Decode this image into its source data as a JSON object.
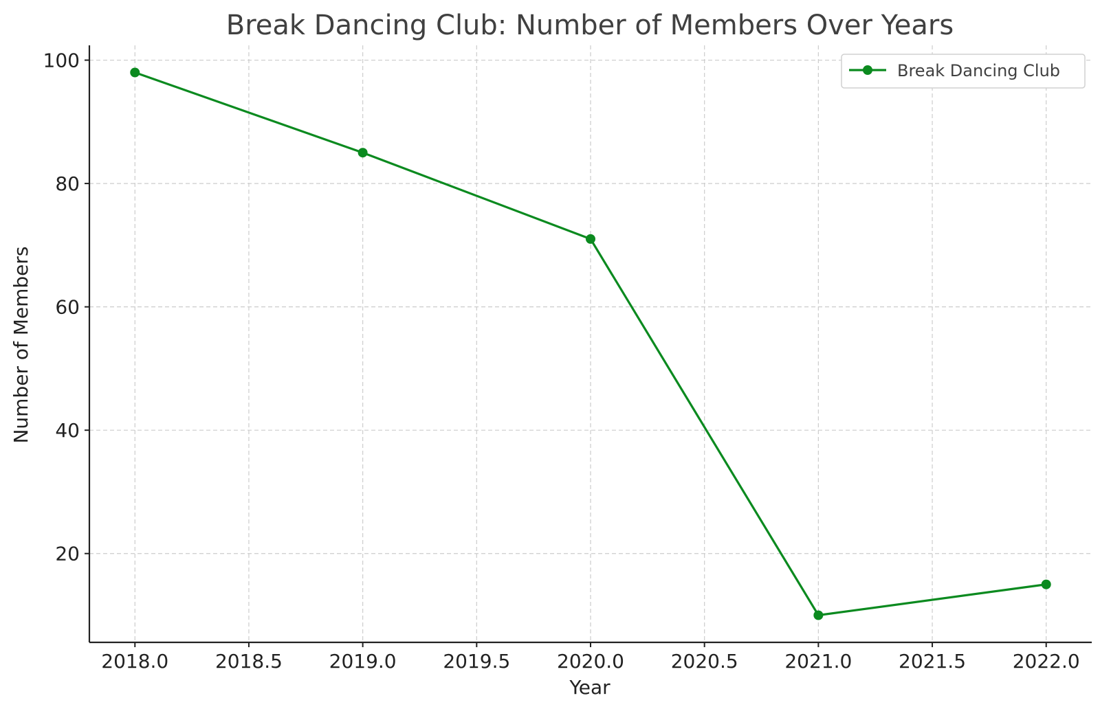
{
  "chart_data": {
    "type": "line",
    "title": "Break Dancing Club: Number of Members Over Years",
    "xlabel": "Year",
    "ylabel": "Number of Members",
    "x": [
      2018,
      2019,
      2020,
      2021,
      2022
    ],
    "series": [
      {
        "name": "Break Dancing Club",
        "values": [
          98,
          85,
          71,
          10,
          15
        ],
        "color": "#0b8a1f"
      }
    ],
    "xlim": [
      2017.8,
      2022.2
    ],
    "ylim": [
      5.6,
      102.4
    ],
    "xticks": [
      "2018.0",
      "2018.5",
      "2019.0",
      "2019.5",
      "2020.0",
      "2020.5",
      "2021.0",
      "2021.5",
      "2022.0"
    ],
    "yticks": [
      "20",
      "40",
      "60",
      "80",
      "100"
    ],
    "grid": true,
    "grid_style": "dashed",
    "legend_position": "top-right",
    "marker": "circle"
  }
}
